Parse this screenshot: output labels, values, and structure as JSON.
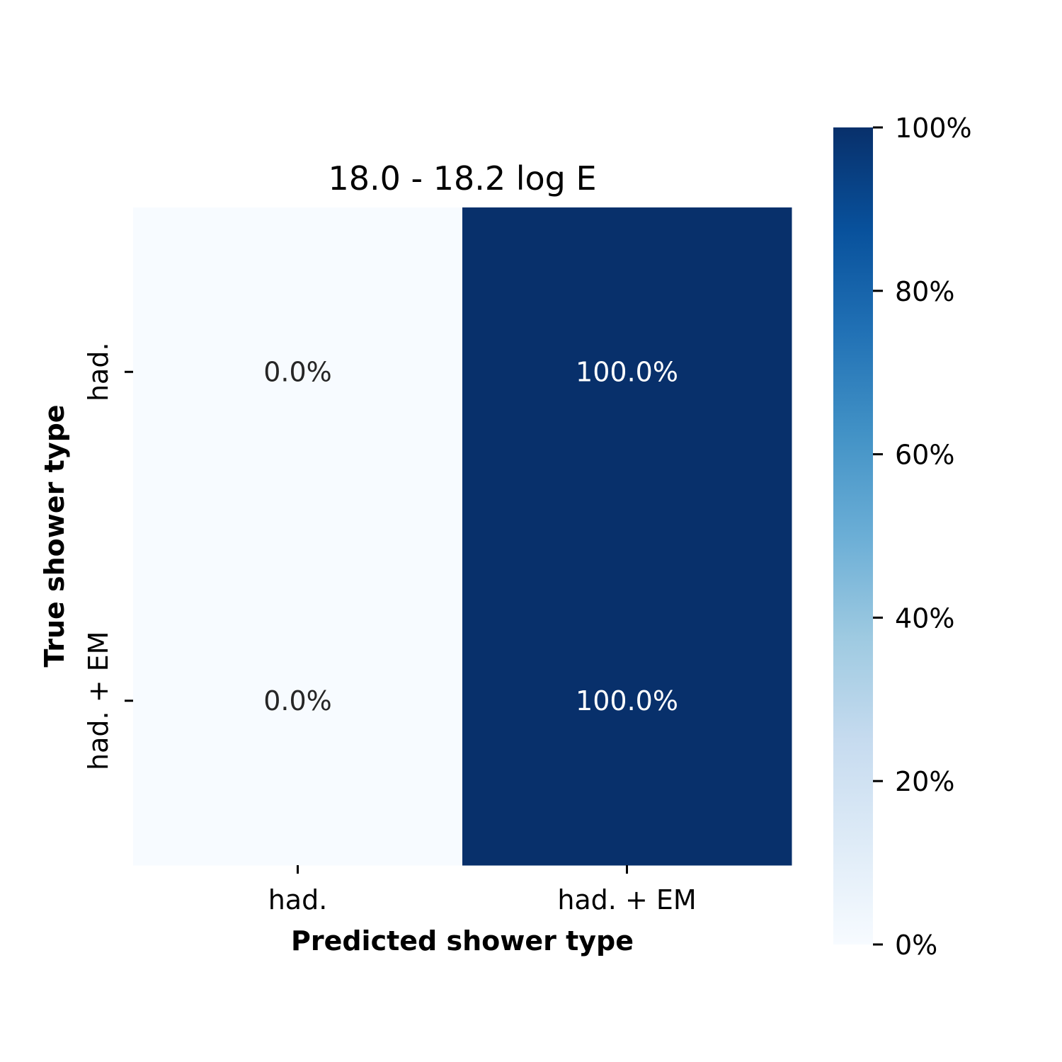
{
  "chart_data": {
    "type": "heatmap",
    "title": "18.0 - 18.2 log E",
    "xlabel": "Predicted shower type",
    "ylabel": "True shower type",
    "x_categories": [
      "had.",
      "had. + EM"
    ],
    "y_categories": [
      "had.",
      "had. + EM"
    ],
    "values": [
      [
        0.0,
        100.0
      ],
      [
        0.0,
        100.0
      ]
    ],
    "cell_labels": [
      [
        "0.0%",
        "100.0%"
      ],
      [
        "0.0%",
        "100.0%"
      ]
    ],
    "colorbar": {
      "range": [
        0,
        100
      ],
      "ticks": [
        0,
        20,
        40,
        60,
        80,
        100
      ],
      "tick_labels": [
        "0%",
        "20%",
        "40%",
        "60%",
        "80%",
        "100%"
      ],
      "colormap": "Blues",
      "low_color": "#f7fbff",
      "high_color": "#08306b"
    }
  }
}
